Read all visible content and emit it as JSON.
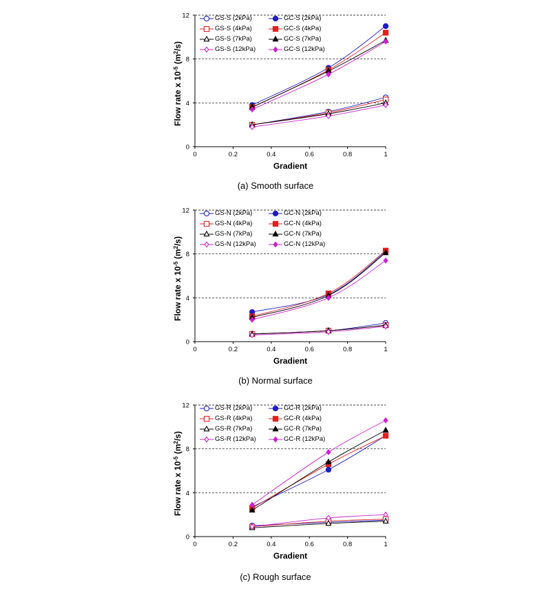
{
  "chart_data": [
    {
      "type": "line",
      "caption": "(a) Smooth surface",
      "xlabel": "Gradient",
      "ylabel": "Flow rate x 10",
      "ylabel_exp": "-5",
      "ylabel_unit": " (m",
      "ylabel_unit_exp": "2",
      "ylabel_unit_tail": "/s)",
      "xlim": [
        0,
        1
      ],
      "ylim": [
        0,
        12
      ],
      "xticks": [
        "0",
        "0.2",
        "0.4",
        "0.6",
        "0.8",
        "1"
      ],
      "yticks": [
        "0",
        "4",
        "8",
        "12"
      ],
      "grid": "horizontal dashed",
      "legend_position": "top-left",
      "x": [
        0.3,
        0.7,
        1.0
      ],
      "series": [
        {
          "name": "GS-S (2kPa)",
          "values": [
            2.0,
            3.2,
            4.5
          ],
          "color": "#1f1fbf",
          "marker": "circle",
          "filled": false
        },
        {
          "name": "GC-S (2kPa)",
          "values": [
            3.8,
            7.2,
            11.0
          ],
          "color": "#1f1fbf",
          "marker": "circle",
          "filled": true
        },
        {
          "name": "GS-S (4kPa)",
          "values": [
            2.0,
            3.1,
            4.3
          ],
          "color": "#e02020",
          "marker": "square",
          "filled": false
        },
        {
          "name": "GC-S (4kPa)",
          "values": [
            3.6,
            7.0,
            10.4
          ],
          "color": "#e02020",
          "marker": "square",
          "filled": true
        },
        {
          "name": "GS-S (7kPa)",
          "values": [
            2.0,
            3.0,
            4.0
          ],
          "color": "#000000",
          "marker": "triangle",
          "filled": false
        },
        {
          "name": "GC-S (7kPa)",
          "values": [
            3.6,
            6.9,
            9.7
          ],
          "color": "#000000",
          "marker": "triangle",
          "filled": true
        },
        {
          "name": "GS-S (12kPa)",
          "values": [
            1.8,
            2.8,
            3.8
          ],
          "color": "#cc22cc",
          "marker": "diamond",
          "filled": false
        },
        {
          "name": "GC-S (12kPa)",
          "values": [
            3.4,
            6.6,
            9.6
          ],
          "color": "#cc22cc",
          "marker": "diamond",
          "filled": true
        }
      ]
    },
    {
      "type": "line",
      "caption": "(b) Normal surface",
      "xlabel": "Gradient",
      "ylabel": "Flow rate x 10",
      "ylabel_exp": "-5",
      "ylabel_unit": " (m",
      "ylabel_unit_exp": "2",
      "ylabel_unit_tail": "/s)",
      "xlim": [
        0,
        1
      ],
      "ylim": [
        0,
        12
      ],
      "xticks": [
        "0",
        "0.2",
        "0.4",
        "0.6",
        "0.8",
        "1"
      ],
      "yticks": [
        "0",
        "4",
        "8",
        "12"
      ],
      "grid": "horizontal dashed",
      "legend_position": "top-left",
      "x": [
        0.3,
        0.7,
        1.0
      ],
      "series": [
        {
          "name": "GS-N (2kPa)",
          "values": [
            0.7,
            1.0,
            1.7
          ],
          "color": "#1f1fbf",
          "marker": "circle",
          "filled": false
        },
        {
          "name": "GC-N (2kPa)",
          "values": [
            2.7,
            4.3,
            8.2
          ],
          "color": "#1f1fbf",
          "marker": "circle",
          "filled": true
        },
        {
          "name": "GS-N (4kPa)",
          "values": [
            0.7,
            1.0,
            1.5
          ],
          "color": "#e02020",
          "marker": "square",
          "filled": false
        },
        {
          "name": "GC-N (4kPa)",
          "values": [
            2.3,
            4.4,
            8.3
          ],
          "color": "#e02020",
          "marker": "square",
          "filled": true
        },
        {
          "name": "GS-N (7kPa)",
          "values": [
            0.7,
            1.0,
            1.5
          ],
          "color": "#000000",
          "marker": "triangle",
          "filled": false
        },
        {
          "name": "GC-N (7kPa)",
          "values": [
            2.2,
            4.2,
            8.1
          ],
          "color": "#000000",
          "marker": "triangle",
          "filled": true
        },
        {
          "name": "GS-N (12kPa)",
          "values": [
            0.6,
            0.9,
            1.4
          ],
          "color": "#cc22cc",
          "marker": "diamond",
          "filled": false
        },
        {
          "name": "GC-N (12kPa)",
          "values": [
            2.0,
            4.0,
            7.4
          ],
          "color": "#cc22cc",
          "marker": "diamond",
          "filled": true
        }
      ]
    },
    {
      "type": "line",
      "caption": "(c) Rough surface",
      "xlabel": "Gradient",
      "ylabel": "Flow rate x 10",
      "ylabel_exp": "-5",
      "ylabel_unit": " (m",
      "ylabel_unit_exp": "2",
      "ylabel_unit_tail": "/s)",
      "xlim": [
        0,
        1
      ],
      "ylim": [
        0,
        12
      ],
      "xticks": [
        "0",
        "0.2",
        "0.4",
        "0.6",
        "0.8",
        "1"
      ],
      "yticks": [
        "0",
        "4",
        "8",
        "12"
      ],
      "grid": "horizontal dashed",
      "legend_position": "top-left",
      "x": [
        0.3,
        0.7,
        1.0
      ],
      "series": [
        {
          "name": "GS-R (2kPa)",
          "values": [
            1.0,
            1.3,
            1.5
          ],
          "color": "#1f1fbf",
          "marker": "circle",
          "filled": false
        },
        {
          "name": "GC-R (2kPa)",
          "values": [
            2.7,
            6.1,
            9.2
          ],
          "color": "#1f1fbf",
          "marker": "circle",
          "filled": true
        },
        {
          "name": "GS-R (4kPa)",
          "values": [
            0.9,
            1.4,
            1.6
          ],
          "color": "#e02020",
          "marker": "square",
          "filled": false
        },
        {
          "name": "GC-R (4kPa)",
          "values": [
            2.6,
            6.6,
            9.2
          ],
          "color": "#e02020",
          "marker": "square",
          "filled": true
        },
        {
          "name": "GS-R (7kPa)",
          "values": [
            0.8,
            1.2,
            1.4
          ],
          "color": "#000000",
          "marker": "triangle",
          "filled": false
        },
        {
          "name": "GC-R (7kPa)",
          "values": [
            2.4,
            6.8,
            9.7
          ],
          "color": "#000000",
          "marker": "triangle",
          "filled": true
        },
        {
          "name": "GS-R (12kPa)",
          "values": [
            0.9,
            1.7,
            2.0
          ],
          "color": "#cc22cc",
          "marker": "diamond",
          "filled": false
        },
        {
          "name": "GC-R (12kPa)",
          "values": [
            2.9,
            7.7,
            10.6
          ],
          "color": "#cc22cc",
          "marker": "diamond",
          "filled": true
        }
      ]
    }
  ]
}
